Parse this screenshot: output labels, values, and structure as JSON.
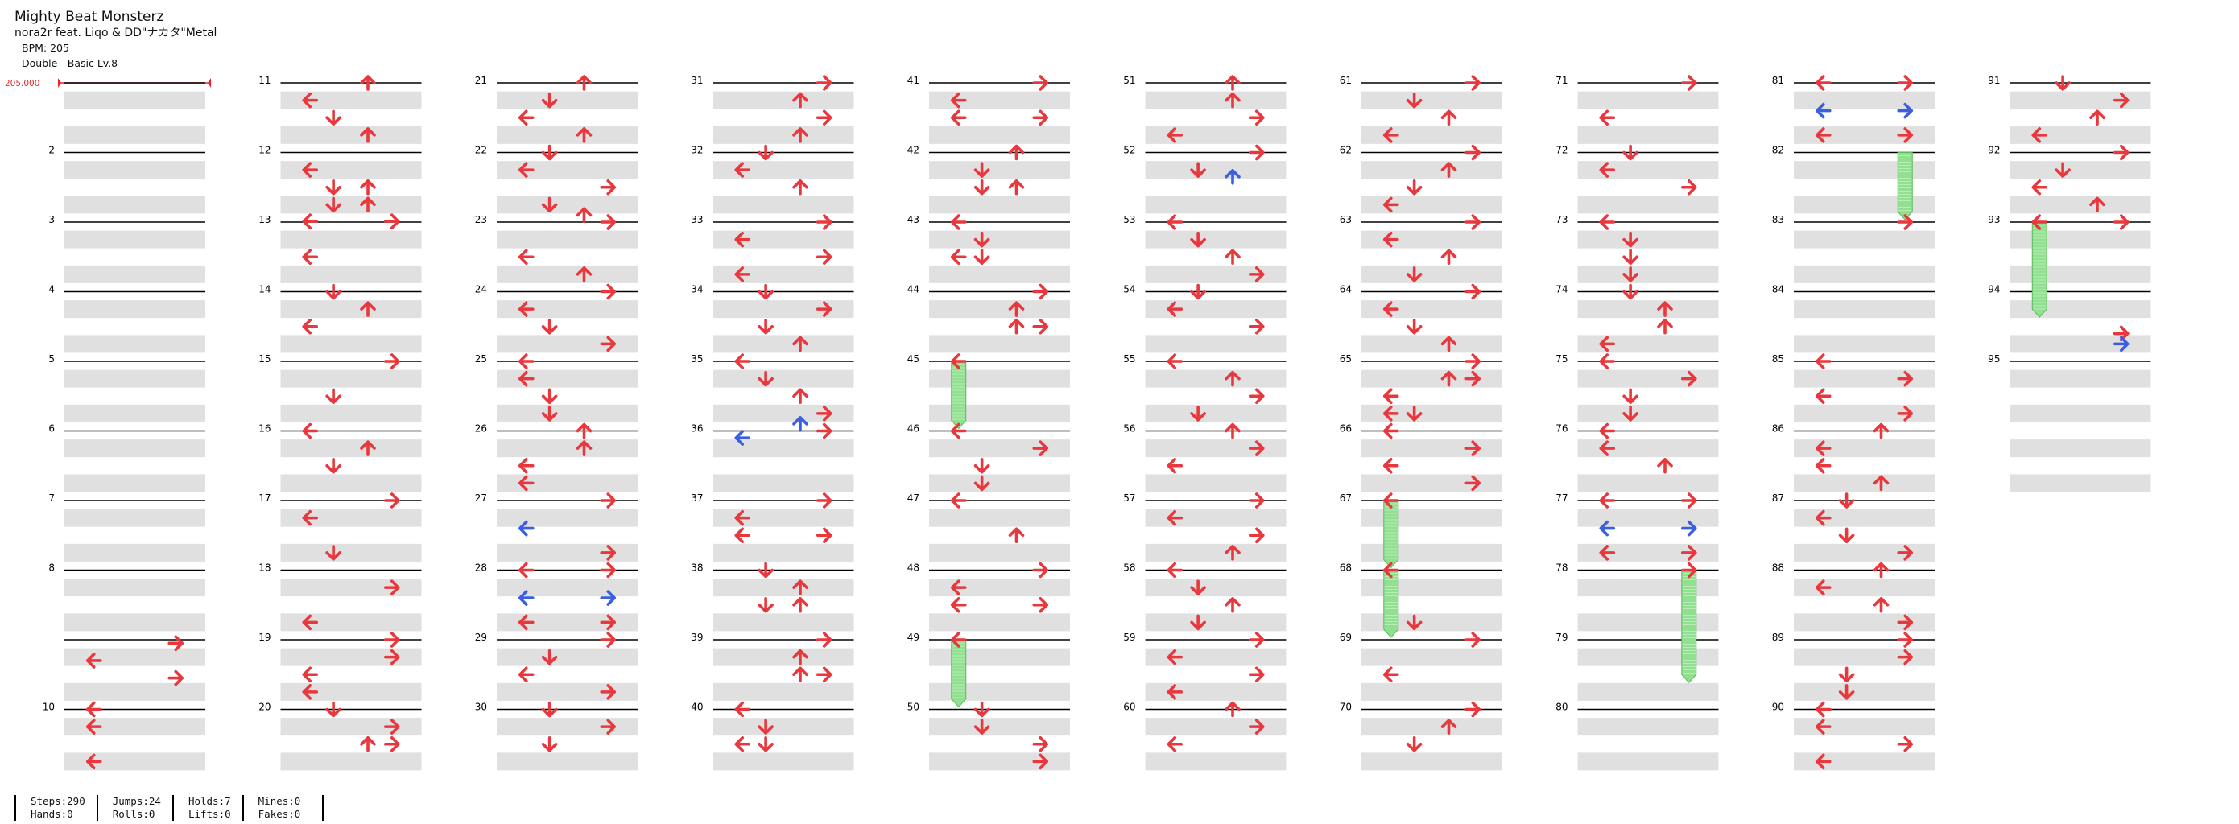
{
  "header": {
    "title": "Mighty Beat Monsterz",
    "artist": "nora2r feat. Liqo & DD\"ナカタ\"Metal",
    "bpm_text": "BPM: 205",
    "difficulty_text": "Double - Basic  Lv.8"
  },
  "bpm_marker": "205.000",
  "stats": [
    {
      "line1": "Steps:290",
      "line2": "Hands:0"
    },
    {
      "line1": "Jumps:24",
      "line2": "Rolls:0"
    },
    {
      "line1": "Holds:7",
      "line2": "Lifts:0"
    },
    {
      "line1": "Mines:0",
      "line2": "Fakes:0"
    }
  ],
  "colors": {
    "tap": "#e8383d",
    "tap_alt": "#3a5fe0",
    "hold": "#90e090",
    "row_shade": "#e0e0e0"
  },
  "notes": [
    [
      9,
      0.05,
      "R",
      0
    ],
    [
      9,
      0.3,
      "L",
      0
    ],
    [
      9,
      0.55,
      "R",
      0
    ],
    [
      10,
      0.0,
      "L",
      0
    ],
    [
      10,
      0.25,
      "L",
      0
    ],
    [
      10,
      0.75,
      "L",
      0
    ],
    [
      11,
      0.0,
      "U",
      0
    ],
    [
      11,
      0.25,
      "L",
      0
    ],
    [
      11,
      0.5,
      "D",
      0
    ],
    [
      11,
      0.75,
      "U",
      0
    ],
    [
      12,
      0.25,
      "L",
      0
    ],
    [
      12,
      0.5,
      "D",
      0
    ],
    [
      12,
      0.5,
      "U",
      0
    ],
    [
      12,
      0.75,
      "D",
      0
    ],
    [
      12,
      0.75,
      "U",
      0
    ],
    [
      12,
      0.99,
      "L",
      0
    ],
    [
      12,
      0.99,
      "R",
      0
    ],
    [
      13,
      0.5,
      "L",
      0
    ],
    [
      14,
      0.0,
      "D",
      0
    ],
    [
      14,
      0.25,
      "U",
      0
    ],
    [
      14,
      0.5,
      "L",
      0
    ],
    [
      15,
      0.0,
      "R",
      0
    ],
    [
      15,
      0.5,
      "D",
      0
    ],
    [
      16,
      0.0,
      "L",
      0
    ],
    [
      16,
      0.25,
      "U",
      0
    ],
    [
      16,
      0.5,
      "D",
      0
    ],
    [
      17,
      0.0,
      "R",
      0
    ],
    [
      17,
      0.25,
      "L",
      0
    ],
    [
      17,
      0.75,
      "D",
      0
    ],
    [
      18,
      0.25,
      "R",
      0
    ],
    [
      18,
      0.75,
      "L",
      0
    ],
    [
      19,
      0.0,
      "R",
      0
    ],
    [
      19,
      0.25,
      "R",
      0
    ],
    [
      19,
      0.5,
      "L",
      0
    ],
    [
      19,
      0.75,
      "L",
      0
    ],
    [
      20,
      0.0,
      "D",
      0
    ],
    [
      20,
      0.25,
      "R",
      0
    ],
    [
      20,
      0.5,
      "U",
      0
    ],
    [
      20,
      0.5,
      "R",
      0
    ],
    [
      21,
      0.0,
      "U",
      0
    ],
    [
      21,
      0.25,
      "D",
      0
    ],
    [
      21,
      0.5,
      "L",
      0
    ],
    [
      21,
      0.75,
      "U",
      0
    ],
    [
      22,
      0.0,
      "D",
      0
    ],
    [
      22,
      0.25,
      "L",
      0
    ],
    [
      22,
      0.5,
      "R",
      0
    ],
    [
      22,
      0.75,
      "D",
      0
    ],
    [
      22,
      0.9,
      "U",
      0
    ],
    [
      23,
      0.0,
      "R",
      0
    ],
    [
      23,
      0.5,
      "L",
      0
    ],
    [
      23,
      0.75,
      "U",
      0
    ],
    [
      24,
      0.0,
      "R",
      0
    ],
    [
      24,
      0.25,
      "L",
      0
    ],
    [
      24,
      0.5,
      "D",
      0
    ],
    [
      24,
      0.75,
      "R",
      0
    ],
    [
      25,
      0.0,
      "L",
      0
    ],
    [
      25,
      0.25,
      "L",
      0
    ],
    [
      25,
      0.5,
      "D",
      0
    ],
    [
      25,
      0.75,
      "D",
      0
    ],
    [
      26,
      0.0,
      "U",
      0
    ],
    [
      26,
      0.25,
      "U",
      0
    ],
    [
      26,
      0.5,
      "L",
      0
    ],
    [
      26,
      0.75,
      "L",
      0
    ],
    [
      27,
      0.0,
      "R",
      0
    ],
    [
      27,
      0.4,
      "L",
      1
    ],
    [
      27,
      0.75,
      "R",
      0
    ],
    [
      28,
      0.0,
      "R",
      0
    ],
    [
      28,
      0.0,
      "L",
      0
    ],
    [
      28,
      0.4,
      "R",
      1
    ],
    [
      28,
      0.4,
      "L",
      1
    ],
    [
      28,
      0.75,
      "R",
      0
    ],
    [
      28,
      0.75,
      "L",
      0
    ],
    [
      29,
      0.0,
      "R",
      0
    ],
    [
      29,
      0.25,
      "D",
      0
    ],
    [
      29,
      0.5,
      "L",
      0
    ],
    [
      29,
      0.75,
      "R",
      0
    ],
    [
      30,
      0.0,
      "D",
      0
    ],
    [
      30,
      0.25,
      "R",
      0
    ],
    [
      30,
      0.5,
      "D",
      0
    ],
    [
      31,
      0.0,
      "R",
      0
    ],
    [
      31,
      0.25,
      "U",
      0
    ],
    [
      31,
      0.5,
      "R",
      0
    ],
    [
      31,
      0.75,
      "U",
      0
    ],
    [
      32,
      0.0,
      "D",
      0
    ],
    [
      32,
      0.25,
      "L",
      0
    ],
    [
      32,
      0.5,
      "U",
      0
    ],
    [
      33,
      0.0,
      "R",
      0
    ],
    [
      33,
      0.25,
      "L",
      0
    ],
    [
      33,
      0.5,
      "R",
      0
    ],
    [
      33,
      0.75,
      "L",
      0
    ],
    [
      34,
      0.0,
      "D",
      0
    ],
    [
      34,
      0.25,
      "R",
      0
    ],
    [
      34,
      0.5,
      "D",
      0
    ],
    [
      34,
      0.75,
      "U",
      0
    ],
    [
      35,
      0.0,
      "L",
      0
    ],
    [
      35,
      0.25,
      "D",
      0
    ],
    [
      35,
      0.5,
      "U",
      0
    ],
    [
      35,
      0.75,
      "R",
      0
    ],
    [
      35,
      0.9,
      "U",
      1
    ],
    [
      36,
      0.0,
      "R",
      0
    ],
    [
      36,
      0.1,
      "L",
      1
    ],
    [
      37,
      0.0,
      "R",
      0
    ],
    [
      37,
      0.25,
      "L",
      0
    ],
    [
      37,
      0.5,
      "R",
      0
    ],
    [
      37,
      0.5,
      "L",
      0
    ],
    [
      38,
      0.0,
      "D",
      0
    ],
    [
      38,
      0.25,
      "U",
      0
    ],
    [
      38,
      0.5,
      "D",
      0
    ],
    [
      38,
      0.5,
      "U",
      0
    ],
    [
      39,
      0.0,
      "R",
      0
    ],
    [
      39,
      0.25,
      "U",
      0
    ],
    [
      39,
      0.5,
      "U",
      0
    ],
    [
      39,
      0.5,
      "R",
      0
    ],
    [
      40,
      0.0,
      "L",
      0
    ],
    [
      40,
      0.25,
      "D",
      0
    ],
    [
      40,
      0.5,
      "L",
      0
    ],
    [
      40,
      0.5,
      "D",
      0
    ],
    [
      41,
      0.0,
      "R",
      0
    ],
    [
      41,
      0.25,
      "L",
      0
    ],
    [
      41,
      0.5,
      "R",
      0
    ],
    [
      41,
      0.5,
      "L",
      0
    ],
    [
      42,
      0.0,
      "U",
      0
    ],
    [
      42,
      0.25,
      "D",
      0
    ],
    [
      42,
      0.5,
      "D",
      0
    ],
    [
      42,
      0.5,
      "U",
      0
    ],
    [
      43,
      0.0,
      "L",
      0
    ],
    [
      43,
      0.25,
      "D",
      0
    ],
    [
      43,
      0.5,
      "L",
      0
    ],
    [
      43,
      0.5,
      "D",
      0
    ],
    [
      44,
      0.0,
      "R",
      0
    ],
    [
      44,
      0.25,
      "U",
      0
    ],
    [
      44,
      0.5,
      "U",
      0
    ],
    [
      44,
      0.5,
      "R",
      0
    ],
    [
      45,
      0.0,
      "L",
      0
    ],
    [
      46,
      0.0,
      "L",
      0
    ],
    [
      46,
      0.25,
      "R",
      0
    ],
    [
      46,
      0.5,
      "D",
      0
    ],
    [
      46,
      0.75,
      "D",
      0
    ],
    [
      47,
      0.0,
      "L",
      0
    ],
    [
      47,
      0.5,
      "U",
      0
    ],
    [
      48,
      0.0,
      "R",
      0
    ],
    [
      48,
      0.25,
      "L",
      0
    ],
    [
      48,
      0.5,
      "R",
      0
    ],
    [
      48,
      0.5,
      "L",
      0
    ],
    [
      49,
      0.0,
      "L",
      0
    ],
    [
      50,
      0.0,
      "D",
      0
    ],
    [
      50,
      0.25,
      "D",
      0
    ],
    [
      50,
      0.5,
      "R",
      0
    ],
    [
      50,
      0.75,
      "R",
      0
    ],
    [
      51,
      0.0,
      "U",
      0
    ],
    [
      51,
      0.25,
      "U",
      0
    ],
    [
      51,
      0.5,
      "R",
      0
    ],
    [
      51,
      0.75,
      "L",
      0
    ],
    [
      52,
      0.0,
      "R",
      0
    ],
    [
      52,
      0.25,
      "D",
      0
    ],
    [
      52,
      0.35,
      "U",
      1
    ],
    [
      53,
      0.0,
      "L",
      0
    ],
    [
      53,
      0.25,
      "D",
      0
    ],
    [
      53,
      0.5,
      "U",
      0
    ],
    [
      53,
      0.75,
      "R",
      0
    ],
    [
      54,
      0.0,
      "D",
      0
    ],
    [
      54,
      0.25,
      "L",
      0
    ],
    [
      54,
      0.5,
      "R",
      0
    ],
    [
      55,
      0.0,
      "L",
      0
    ],
    [
      55,
      0.25,
      "U",
      0
    ],
    [
      55,
      0.5,
      "R",
      0
    ],
    [
      55,
      0.75,
      "D",
      0
    ],
    [
      56,
      0.0,
      "U",
      0
    ],
    [
      56,
      0.25,
      "R",
      0
    ],
    [
      56,
      0.5,
      "L",
      0
    ],
    [
      57,
      0.0,
      "R",
      0
    ],
    [
      57,
      0.25,
      "L",
      0
    ],
    [
      57,
      0.5,
      "R",
      0
    ],
    [
      57,
      0.75,
      "U",
      0
    ],
    [
      58,
      0.0,
      "L",
      0
    ],
    [
      58,
      0.25,
      "D",
      0
    ],
    [
      58,
      0.5,
      "U",
      0
    ],
    [
      58,
      0.75,
      "D",
      0
    ],
    [
      59,
      0.0,
      "R",
      0
    ],
    [
      59,
      0.25,
      "L",
      0
    ],
    [
      59,
      0.5,
      "R",
      0
    ],
    [
      59,
      0.75,
      "L",
      0
    ],
    [
      60,
      0.0,
      "U",
      0
    ],
    [
      60,
      0.25,
      "R",
      0
    ],
    [
      60,
      0.5,
      "L",
      0
    ],
    [
      61,
      0.0,
      "R",
      0
    ],
    [
      61,
      0.25,
      "D",
      0
    ],
    [
      61,
      0.5,
      "U",
      0
    ],
    [
      61,
      0.75,
      "L",
      0
    ],
    [
      62,
      0.0,
      "R",
      0
    ],
    [
      62,
      0.25,
      "U",
      0
    ],
    [
      62,
      0.5,
      "D",
      0
    ],
    [
      62,
      0.75,
      "L",
      0
    ],
    [
      63,
      0.0,
      "R",
      0
    ],
    [
      63,
      0.25,
      "L",
      0
    ],
    [
      63,
      0.5,
      "U",
      0
    ],
    [
      63,
      0.75,
      "D",
      0
    ],
    [
      64,
      0.0,
      "R",
      0
    ],
    [
      64,
      0.25,
      "L",
      0
    ],
    [
      64,
      0.5,
      "D",
      0
    ],
    [
      64,
      0.75,
      "U",
      0
    ],
    [
      65,
      0.0,
      "R",
      0
    ],
    [
      65,
      0.25,
      "U",
      0
    ],
    [
      65,
      0.25,
      "R",
      0
    ],
    [
      65,
      0.5,
      "L",
      0
    ],
    [
      65,
      0.75,
      "L",
      0
    ],
    [
      65,
      0.75,
      "D",
      0
    ],
    [
      66,
      0.0,
      "L",
      0
    ],
    [
      66,
      0.25,
      "R",
      0
    ],
    [
      66,
      0.5,
      "L",
      0
    ],
    [
      66,
      0.75,
      "R",
      0
    ],
    [
      67,
      0.0,
      "L",
      0
    ],
    [
      68,
      0.0,
      "L",
      0
    ],
    [
      68,
      0.75,
      "D",
      0
    ],
    [
      69,
      0.0,
      "R",
      0
    ],
    [
      69,
      0.5,
      "L",
      0
    ],
    [
      70,
      0.0,
      "R",
      0
    ],
    [
      70,
      0.25,
      "U",
      0
    ],
    [
      70,
      0.5,
      "D",
      0
    ],
    [
      71,
      0.0,
      "R",
      0
    ],
    [
      71,
      0.5,
      "L",
      0
    ],
    [
      72,
      0.0,
      "D",
      0
    ],
    [
      72,
      0.25,
      "L",
      0
    ],
    [
      72,
      0.5,
      "R",
      0
    ],
    [
      73,
      0.0,
      "L",
      0
    ],
    [
      73,
      0.25,
      "D",
      0
    ],
    [
      73,
      0.5,
      "D",
      0
    ],
    [
      73,
      0.75,
      "D",
      0
    ],
    [
      74,
      0.0,
      "D",
      0
    ],
    [
      74,
      0.25,
      "U",
      0
    ],
    [
      74,
      0.5,
      "U",
      0
    ],
    [
      74,
      0.75,
      "L",
      0
    ],
    [
      75,
      0.0,
      "L",
      0
    ],
    [
      75,
      0.25,
      "R",
      0
    ],
    [
      75,
      0.5,
      "D",
      0
    ],
    [
      75,
      0.75,
      "D",
      0
    ],
    [
      76,
      0.0,
      "L",
      0
    ],
    [
      76,
      0.25,
      "L",
      0
    ],
    [
      76,
      0.5,
      "U",
      0
    ],
    [
      77,
      0.0,
      "R",
      0
    ],
    [
      77,
      0.0,
      "L",
      0
    ],
    [
      77,
      0.4,
      "R",
      1
    ],
    [
      77,
      0.4,
      "L",
      1
    ],
    [
      77,
      0.75,
      "R",
      0
    ],
    [
      77,
      0.75,
      "L",
      0
    ],
    [
      78,
      0.0,
      "R",
      0
    ],
    [
      81,
      0.0,
      "R",
      0
    ],
    [
      81,
      0.0,
      "L",
      0
    ],
    [
      81,
      0.4,
      "R",
      1
    ],
    [
      81,
      0.4,
      "L",
      1
    ],
    [
      81,
      0.75,
      "R",
      0
    ],
    [
      81,
      0.75,
      "L",
      0
    ],
    [
      83,
      0.0,
      "R",
      0
    ],
    [
      85,
      0.0,
      "L",
      0
    ],
    [
      85,
      0.25,
      "R",
      0
    ],
    [
      85,
      0.5,
      "L",
      0
    ],
    [
      85,
      0.75,
      "R",
      0
    ],
    [
      86,
      0.0,
      "U",
      0
    ],
    [
      86,
      0.25,
      "L",
      0
    ],
    [
      86,
      0.5,
      "L",
      0
    ],
    [
      86,
      0.75,
      "U",
      0
    ],
    [
      87,
      0.0,
      "D",
      0
    ],
    [
      87,
      0.25,
      "L",
      0
    ],
    [
      87,
      0.5,
      "D",
      0
    ],
    [
      87,
      0.75,
      "R",
      0
    ],
    [
      88,
      0.0,
      "U",
      0
    ],
    [
      88,
      0.25,
      "L",
      0
    ],
    [
      88,
      0.5,
      "U",
      0
    ],
    [
      88,
      0.75,
      "R",
      0
    ],
    [
      89,
      0.0,
      "R",
      0
    ],
    [
      89,
      0.25,
      "R",
      0
    ],
    [
      89,
      0.5,
      "D",
      0
    ],
    [
      89,
      0.75,
      "D",
      0
    ],
    [
      90,
      0.0,
      "L",
      0
    ],
    [
      90,
      0.25,
      "L",
      0
    ],
    [
      90,
      0.5,
      "R",
      0
    ],
    [
      90,
      0.75,
      "L",
      0
    ],
    [
      91,
      0.0,
      "D",
      0
    ],
    [
      91,
      0.25,
      "R",
      0
    ],
    [
      91,
      0.5,
      "U",
      0
    ],
    [
      91,
      0.75,
      "L",
      0
    ],
    [
      92,
      0.0,
      "R",
      0
    ],
    [
      92,
      0.25,
      "D",
      0
    ],
    [
      92,
      0.5,
      "L",
      0
    ],
    [
      92,
      0.75,
      "U",
      0
    ],
    [
      93,
      0.0,
      "R",
      0
    ],
    [
      93,
      0.0,
      "L",
      0
    ],
    [
      94,
      0.6,
      "R",
      1
    ],
    [
      94,
      0.6,
      "R",
      0
    ],
    [
      94,
      0.75,
      "R",
      1
    ]
  ],
  "holds": [
    [
      45,
      0.0,
      "L",
      0.85
    ],
    [
      49,
      0.0,
      "L",
      0.85
    ],
    [
      67,
      0.0,
      "L",
      0.85
    ],
    [
      68,
      0.0,
      "L",
      0.85
    ],
    [
      78,
      0.0,
      "R",
      1.5
    ],
    [
      82,
      0.0,
      "R",
      0.85
    ],
    [
      93,
      0.0,
      "L",
      1.25
    ]
  ]
}
